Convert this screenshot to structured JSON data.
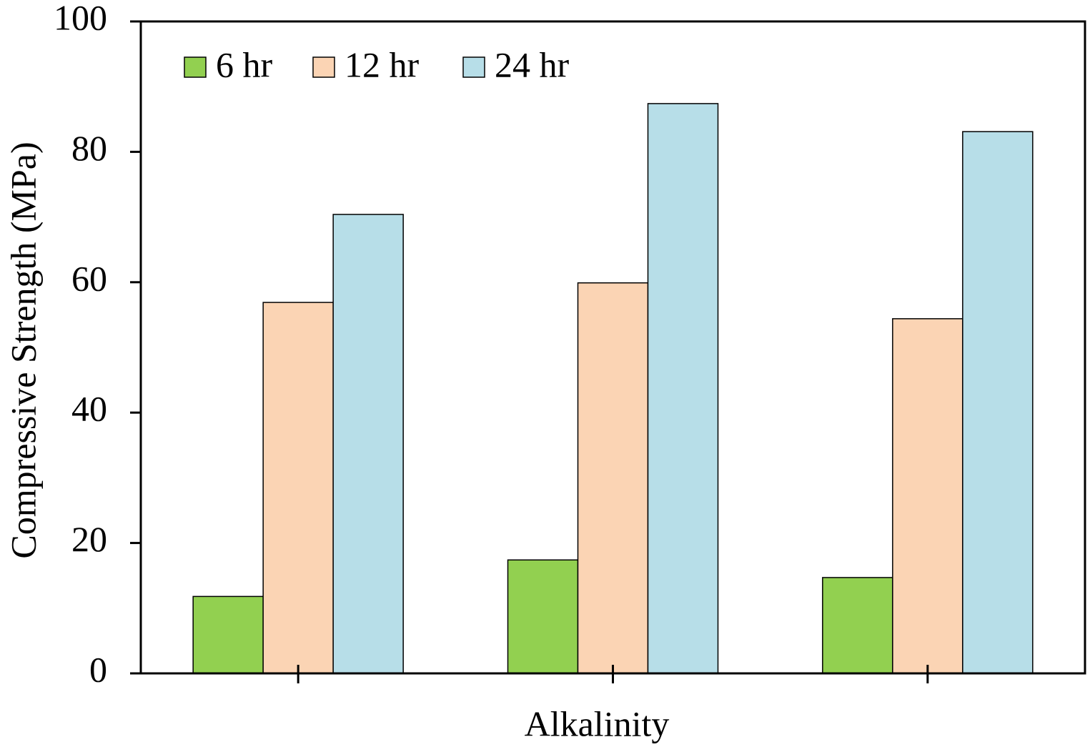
{
  "chart_data": {
    "type": "bar",
    "x_label": "Alkalinity",
    "y_label": "Compressive Strength (MPa)",
    "categories": [
      null,
      null,
      null
    ],
    "series": [
      {
        "name": "6 hr",
        "color": "#92d050",
        "values": [
          11.8,
          17.4,
          14.7
        ]
      },
      {
        "name": "12 hr",
        "color": "#fbd4b4",
        "values": [
          56.9,
          59.9,
          54.4
        ]
      },
      {
        "name": "24 hr",
        "color": "#b7dee8",
        "values": [
          70.4,
          87.4,
          83.1
        ]
      }
    ],
    "ylim": [
      0,
      100
    ],
    "yticks": [
      0,
      20,
      40,
      60,
      80,
      100
    ],
    "grid": false,
    "legend": "upper left"
  }
}
